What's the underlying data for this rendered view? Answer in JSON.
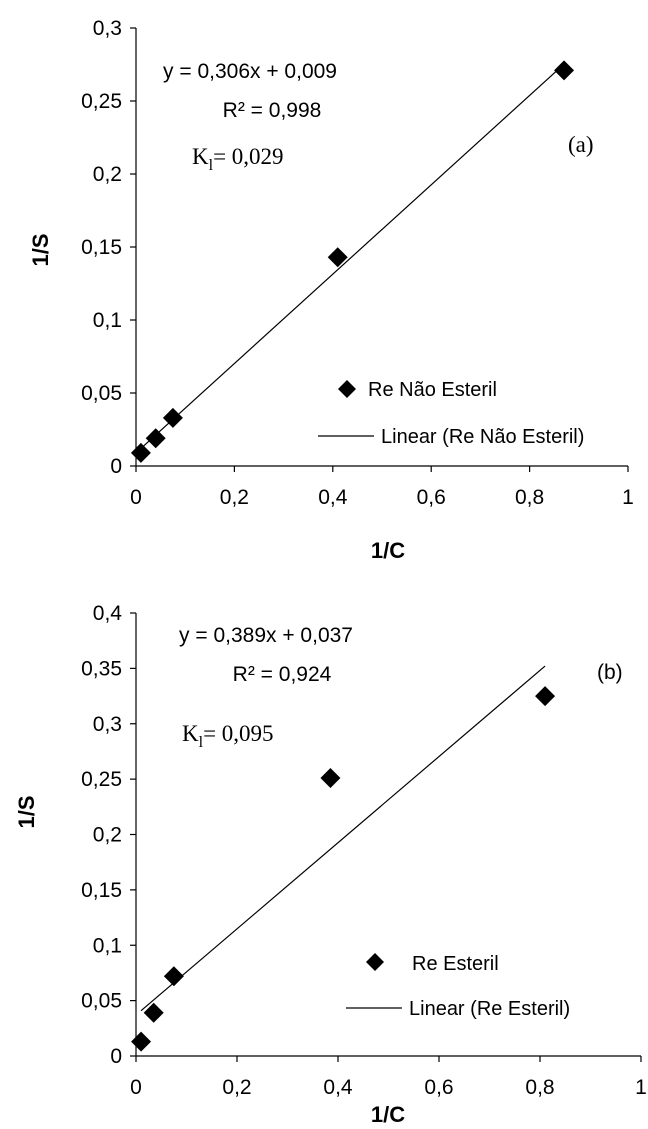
{
  "chart_data": [
    {
      "type": "scatter",
      "panel": "(a)",
      "xlabel": "1/C",
      "ylabel": "1/S",
      "xlim": [
        0,
        1
      ],
      "ylim": [
        0,
        0.3
      ],
      "xticks": [
        "0",
        "0,2",
        "0,4",
        "0,6",
        "0,8",
        "1"
      ],
      "yticks": [
        "0",
        "0,05",
        "0,1",
        "0,15",
        "0,2",
        "0,25",
        "0,3"
      ],
      "series": [
        {
          "name": "Re Não Esteril",
          "marker": "diamond",
          "x": [
            0.01,
            0.04,
            0.075,
            0.41,
            0.87
          ],
          "y": [
            0.009,
            0.019,
            0.033,
            0.143,
            0.271
          ]
        }
      ],
      "trendline": {
        "name": "Linear (Re Não Esteril)",
        "slope": 0.306,
        "intercept": 0.009,
        "x_range": [
          0.01,
          0.87
        ]
      },
      "equation": "y = 0,306x + 0,009",
      "r2": "R² = 0,998",
      "k_label": "K",
      "k_sub": "l",
      "k_value": "= 0,029",
      "legend_position": "bottom-right",
      "grid": false
    },
    {
      "type": "scatter",
      "panel": "(b)",
      "xlabel": "1/C",
      "ylabel": "1/S",
      "xlim": [
        0,
        1
      ],
      "ylim": [
        0,
        0.4
      ],
      "xticks": [
        "0",
        "0,2",
        "0,4",
        "0,6",
        "0,8",
        "1"
      ],
      "yticks": [
        "0",
        "0,05",
        "0,1",
        "0,15",
        "0,2",
        "0,25",
        "0,3",
        "0,35",
        "0,4"
      ],
      "series": [
        {
          "name": "Re Esteril",
          "marker": "diamond",
          "x": [
            0.01,
            0.035,
            0.075,
            0.385,
            0.81
          ],
          "y": [
            0.013,
            0.039,
            0.072,
            0.251,
            0.325
          ]
        }
      ],
      "trendline": {
        "name": "Linear (Re Esteril)",
        "slope": 0.389,
        "intercept": 0.037,
        "x_range": [
          0.01,
          0.81
        ]
      },
      "equation": "y = 0,389x + 0,037",
      "r2": "R² = 0,924",
      "k_label": "K",
      "k_sub": "l",
      "k_value": "= 0,095",
      "legend_position": "bottom-right",
      "grid": false
    }
  ]
}
